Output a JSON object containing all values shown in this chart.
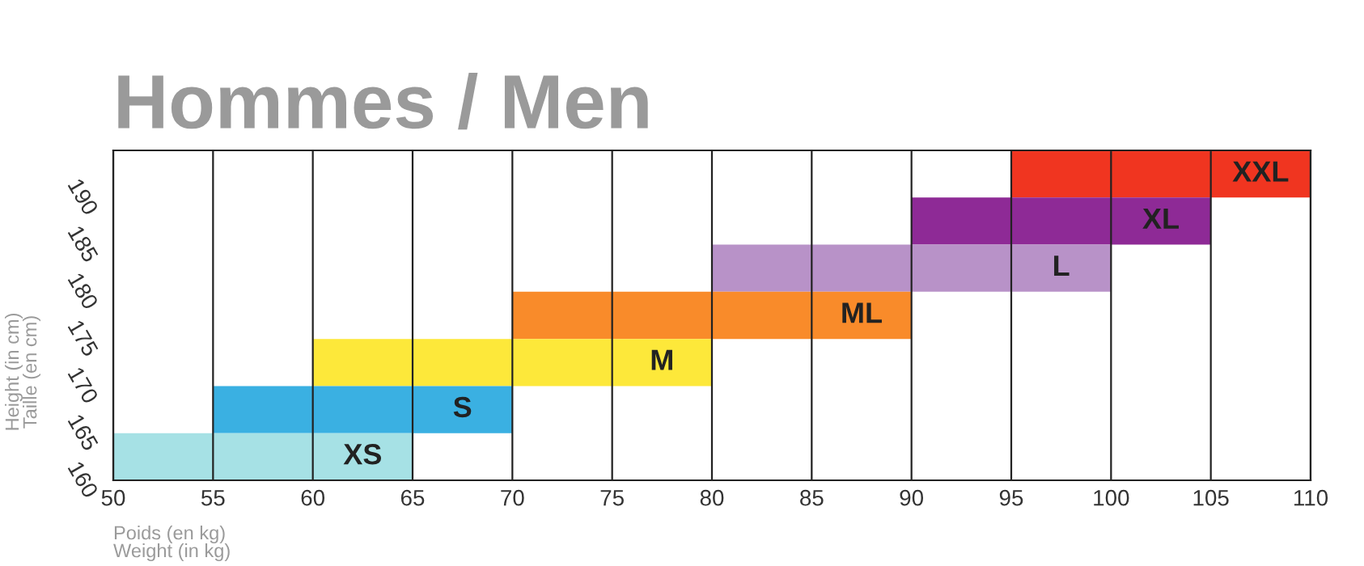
{
  "chart_data": {
    "type": "bar",
    "orientation": "horizontal",
    "title": "Hommes / Men",
    "xlabel": "Poids (en kg)\nWeight (in kg)",
    "ylabel": "Height (in cm)\nTaille (en cm)",
    "categories": [
      "190",
      "185",
      "180",
      "175",
      "170",
      "165",
      "160"
    ],
    "base": [
      95,
      90,
      80,
      70,
      60,
      55,
      50
    ],
    "values": [
      15,
      15,
      20,
      20,
      20,
      15,
      15
    ],
    "colors": [
      "#f03520",
      "#8e2a96",
      "#b892c8",
      "#f98b2a",
      "#fde83a",
      "#3ab0e2",
      "#a6e1e5"
    ],
    "xlim": [
      50,
      110
    ],
    "xticks": [
      50,
      55,
      60,
      65,
      70,
      75,
      80,
      85,
      90,
      95,
      100,
      105,
      110
    ],
    "grid": true,
    "legend": false,
    "annotations": [
      {
        "text": "XXL",
        "x": 107.5,
        "y": "190"
      },
      {
        "text": "XL",
        "x": 102.5,
        "y": "185"
      },
      {
        "text": "L",
        "x": 97.5,
        "y": "180"
      },
      {
        "text": "ML",
        "x": 87.5,
        "y": "175"
      },
      {
        "text": "M",
        "x": 77.5,
        "y": "170"
      },
      {
        "text": "S",
        "x": 67.5,
        "y": "165"
      },
      {
        "text": "XS",
        "x": 62.5,
        "y": "160"
      }
    ]
  }
}
